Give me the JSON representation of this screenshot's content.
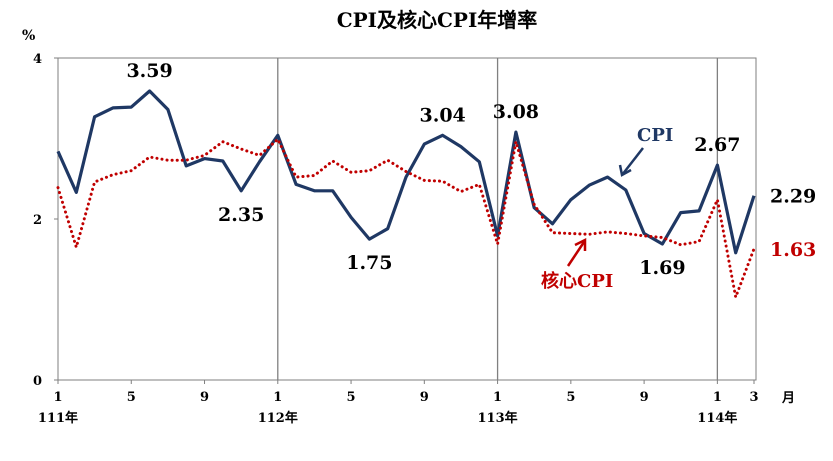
{
  "chart_data": {
    "type": "line",
    "title": "CPI及核心CPI年增率",
    "ylabel": "%",
    "xunit": "月",
    "ylim": [
      0,
      4
    ],
    "yticks": [
      "0",
      "2",
      "4"
    ],
    "x_tick_labels": [
      "1",
      "5",
      "9",
      "1",
      "5",
      "9",
      "1",
      "5",
      "9",
      "1",
      "3"
    ],
    "year_labels": [
      "111年",
      "112年",
      "113年",
      "114年"
    ],
    "categories": [
      "111-1",
      "111-2",
      "111-3",
      "111-4",
      "111-5",
      "111-6",
      "111-7",
      "111-8",
      "111-9",
      "111-10",
      "111-11",
      "111-12",
      "112-1",
      "112-2",
      "112-3",
      "112-4",
      "112-5",
      "112-6",
      "112-7",
      "112-8",
      "112-9",
      "112-10",
      "112-11",
      "112-12",
      "113-1",
      "113-2",
      "113-3",
      "113-4",
      "113-5",
      "113-6",
      "113-7",
      "113-8",
      "113-9",
      "113-10",
      "113-11",
      "113-12",
      "114-1",
      "114-2",
      "114-3"
    ],
    "series": [
      {
        "name": "CPI",
        "color": "#1f3864",
        "style": "solid",
        "values": [
          2.84,
          2.33,
          3.27,
          3.38,
          3.39,
          3.59,
          3.36,
          2.66,
          2.75,
          2.72,
          2.35,
          2.71,
          3.04,
          2.43,
          2.35,
          2.35,
          2.02,
          1.75,
          1.88,
          2.52,
          2.93,
          3.04,
          2.9,
          2.71,
          1.79,
          3.08,
          2.14,
          1.94,
          2.24,
          2.42,
          2.52,
          2.36,
          1.82,
          1.69,
          2.08,
          2.1,
          2.67,
          1.58,
          2.29
        ]
      },
      {
        "name": "核心CPI",
        "color": "#c00000",
        "style": "dotted",
        "values": [
          2.39,
          1.65,
          2.46,
          2.55,
          2.6,
          2.77,
          2.73,
          2.73,
          2.79,
          2.96,
          2.87,
          2.79,
          2.99,
          2.52,
          2.54,
          2.72,
          2.58,
          2.6,
          2.73,
          2.59,
          2.48,
          2.47,
          2.34,
          2.43,
          1.69,
          2.96,
          2.18,
          1.83,
          1.82,
          1.81,
          1.84,
          1.82,
          1.79,
          1.77,
          1.68,
          1.72,
          2.24,
          1.03,
          1.63
        ]
      }
    ],
    "annotations": [
      {
        "text": "3.59",
        "series": 0,
        "index": 5,
        "pos": "above"
      },
      {
        "text": "2.35",
        "series": 0,
        "index": 10,
        "pos": "below"
      },
      {
        "text": "1.75",
        "series": 0,
        "index": 17,
        "pos": "below"
      },
      {
        "text": "3.04",
        "series": 0,
        "index": 21,
        "pos": "above"
      },
      {
        "text": "3.08",
        "series": 0,
        "index": 25,
        "pos": "above"
      },
      {
        "text": "1.69",
        "series": 0,
        "index": 33,
        "pos": "below"
      },
      {
        "text": "2.67",
        "series": 0,
        "index": 36,
        "pos": "above"
      },
      {
        "text": "2.29",
        "series": 0,
        "index": 38,
        "pos": "right"
      },
      {
        "text": "1.63",
        "series": 1,
        "index": 38,
        "pos": "right"
      }
    ],
    "grid": false,
    "legend": "inline"
  }
}
